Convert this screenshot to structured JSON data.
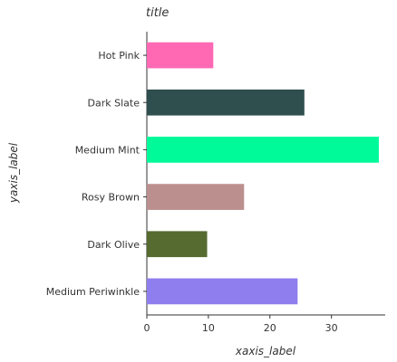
{
  "chart_data": {
    "type": "bar",
    "orientation": "horizontal",
    "title": "title",
    "xlabel": "xaxis_label",
    "ylabel": "yaxis_label",
    "categories": [
      "Medium Periwinkle",
      "Dark Olive",
      "Rosy Brown",
      "Medium Mint",
      "Dark Slate",
      "Hot Pink"
    ],
    "values": [
      24.5,
      9.8,
      15.8,
      37.7,
      25.6,
      10.8
    ],
    "colors": [
      "#8f7eee",
      "#556b2f",
      "#bc8f8f",
      "#00fa9a",
      "#2f4f4f",
      "#ff69b4"
    ],
    "xticks": [
      0,
      10,
      20,
      30
    ],
    "xlim": [
      0,
      38
    ],
    "grid": false,
    "legend": "none"
  }
}
